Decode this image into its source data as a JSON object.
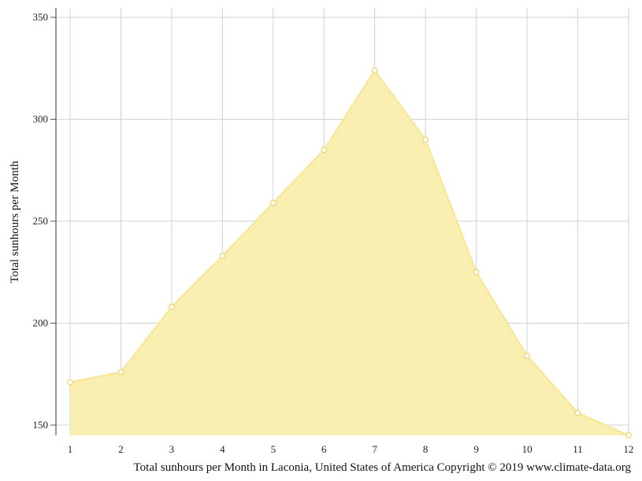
{
  "chart_data": {
    "type": "area",
    "x": [
      1,
      2,
      3,
      4,
      5,
      6,
      7,
      8,
      9,
      10,
      11,
      12
    ],
    "series": [
      {
        "values": [
          171,
          176,
          208,
          233,
          259,
          285,
          324,
          290,
          225,
          184,
          156,
          145
        ]
      }
    ],
    "xlabel": "",
    "ylabel": "Total sunhours per Month",
    "xlim": [
      1,
      12
    ],
    "ylim": [
      145,
      354
    ],
    "yticks": [
      150,
      200,
      250,
      300,
      350
    ],
    "xticks": [
      1,
      2,
      3,
      4,
      5,
      6,
      7,
      8,
      9,
      10,
      11,
      12
    ],
    "grid": true,
    "caption": "Total sunhours per Month in Laconia, United States of America Copyright © 2019 www.climate-data.org",
    "colors": {
      "fill": "#f9eeac",
      "line": "#f7e591",
      "marker_stroke": "#edd46a",
      "marker_fill": "#ffffff",
      "grid": "#d0d0d0",
      "axis": "#555555"
    }
  }
}
